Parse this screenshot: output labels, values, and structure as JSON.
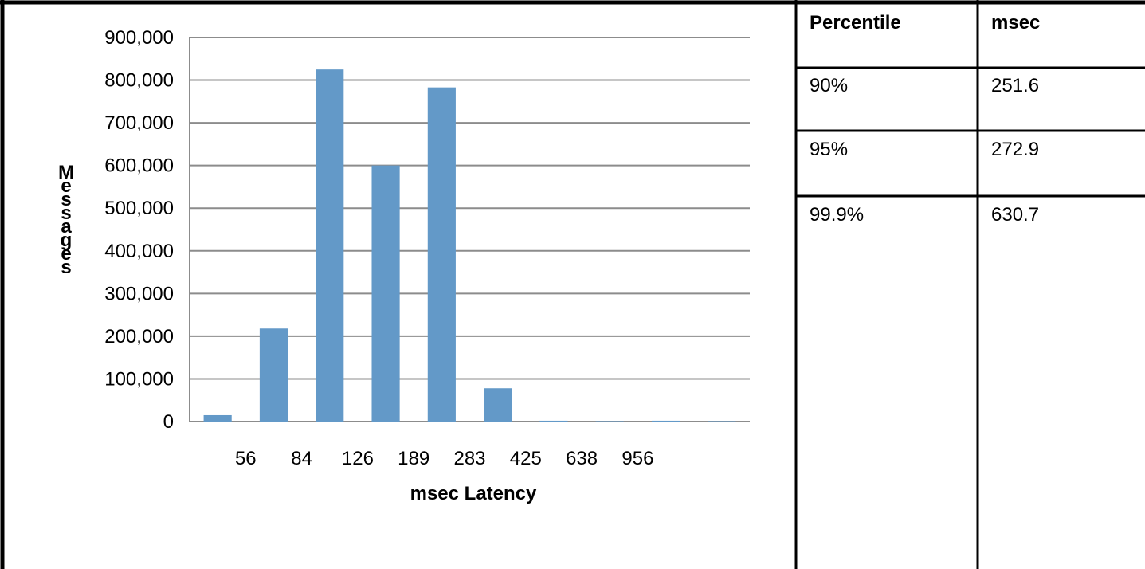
{
  "colors": {
    "bar": "#6399c8",
    "grid": "#8c8c8c",
    "border": "#000000"
  },
  "chart_data": {
    "type": "bar",
    "categories": [
      "",
      "56",
      "84",
      "126",
      "189",
      "283",
      "425",
      "638",
      "956",
      ""
    ],
    "values": [
      15000,
      218000,
      825000,
      600000,
      783000,
      78000,
      2000,
      1000,
      2000,
      1000
    ],
    "ylim": [
      0,
      900000
    ],
    "yticks": [
      "0",
      "100,000",
      "200,000",
      "300,000",
      "400,000",
      "500,000",
      "600,000",
      "700,000",
      "800,000",
      "900,000"
    ],
    "xlabel": "msec Latency",
    "ylabel": "Messages",
    "grid": true,
    "legend": "none"
  },
  "table": {
    "headers": [
      "Percentile",
      "msec"
    ],
    "rows": [
      [
        "90%",
        "251.6"
      ],
      [
        "95%",
        "272.9"
      ],
      [
        "99.9%",
        "630.7"
      ]
    ]
  }
}
